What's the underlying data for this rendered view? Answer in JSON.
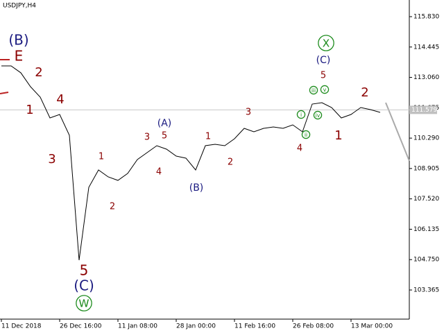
{
  "chart_data": {
    "type": "line",
    "title": "USDJPY,H4",
    "categories": [
      "11 Dec 2018",
      null,
      null,
      null,
      null,
      null,
      "26 Dec 16:00",
      null,
      null,
      null,
      null,
      null,
      "11 Jan 08:00",
      null,
      null,
      null,
      null,
      null,
      "28 Jan 00:00",
      null,
      null,
      null,
      null,
      null,
      "11 Feb 16:00",
      null,
      null,
      null,
      null,
      null,
      "26 Feb 08:00",
      null,
      null,
      null,
      null,
      null,
      "13 Mar 00:00",
      null,
      null,
      null
    ],
    "values": [
      113.584,
      113.584,
      113.27,
      112.634,
      112.16,
      111.211,
      111.369,
      110.42,
      104.725,
      108.047,
      108.838,
      108.522,
      108.363,
      108.68,
      109.312,
      109.629,
      109.945,
      109.787,
      109.471,
      109.376,
      108.838,
      109.945,
      110.009,
      109.945,
      110.262,
      110.736,
      110.578,
      110.736,
      110.8,
      110.736,
      110.894,
      110.578,
      111.843,
      111.907,
      111.685,
      111.211,
      111.369,
      111.685,
      111.59,
      111.464
    ],
    "color": "#000000",
    "ylim": [
      102.036,
      116.589
    ],
    "yticks": [
      {
        "value": 115.83,
        "label": "115.830"
      },
      114.445,
      {
        "value": 113.06,
        "label": "113.060"
      },
      111.675,
      {
        "value": 110.29,
        "label": "110.290"
      },
      108.905,
      {
        "value": 107.52,
        "label": "107.520"
      },
      106.135,
      {
        "value": 104.75,
        "label": "104.750"
      },
      103.365
    ],
    "last_price": 111.579,
    "wave_labels": [
      {
        "text": "(B)",
        "color": "#1a1a80"
      },
      {
        "text": "E",
        "color": "#8b0000"
      },
      {
        "text": "2",
        "color": "#8b0000"
      },
      {
        "text": "1",
        "color": "#8b0000"
      },
      {
        "text": "4",
        "color": "#8b0000"
      },
      {
        "text": "3",
        "color": "#8b0000"
      },
      {
        "text": "1",
        "color": "#8b0000"
      },
      {
        "text": "2",
        "color": "#8b0000"
      },
      {
        "text": "3",
        "color": "#8b0000"
      },
      {
        "text": "5",
        "color": "#8b0000"
      },
      {
        "text": "(A)",
        "color": "#1a1a80"
      },
      {
        "text": "4",
        "color": "#8b0000"
      },
      {
        "text": "1",
        "color": "#8b0000"
      },
      {
        "text": "2",
        "color": "#8b0000"
      },
      {
        "text": "(B)",
        "color": "#1a1a80"
      },
      {
        "text": "3",
        "color": "#8b0000"
      },
      {
        "text": "4",
        "color": "#8b0000"
      },
      {
        "text": "5",
        "color": "#8b0000"
      },
      {
        "text": "(C)",
        "color": "#1a1a80"
      },
      {
        "text": "X",
        "color": "#1e8c1e",
        "circled": true
      },
      {
        "text": "2",
        "color": "#8b0000"
      },
      {
        "text": "1",
        "color": "#8b0000"
      },
      {
        "text": "5",
        "color": "#8b0000"
      },
      {
        "text": "(C)",
        "color": "#1a1a80"
      },
      {
        "text": "W",
        "color": "#1e8c1e",
        "circled": true
      },
      {
        "text": "i",
        "color": "#1e8c1e",
        "circled": true
      },
      {
        "text": "ii",
        "color": "#1e8c1e",
        "circled": true
      },
      {
        "text": "iii",
        "color": "#1e8c1e",
        "circled": true
      },
      {
        "text": "iv",
        "color": "#1e8c1e",
        "circled": true
      },
      {
        "text": "v",
        "color": "#1e8c1e",
        "circled": true
      }
    ]
  }
}
